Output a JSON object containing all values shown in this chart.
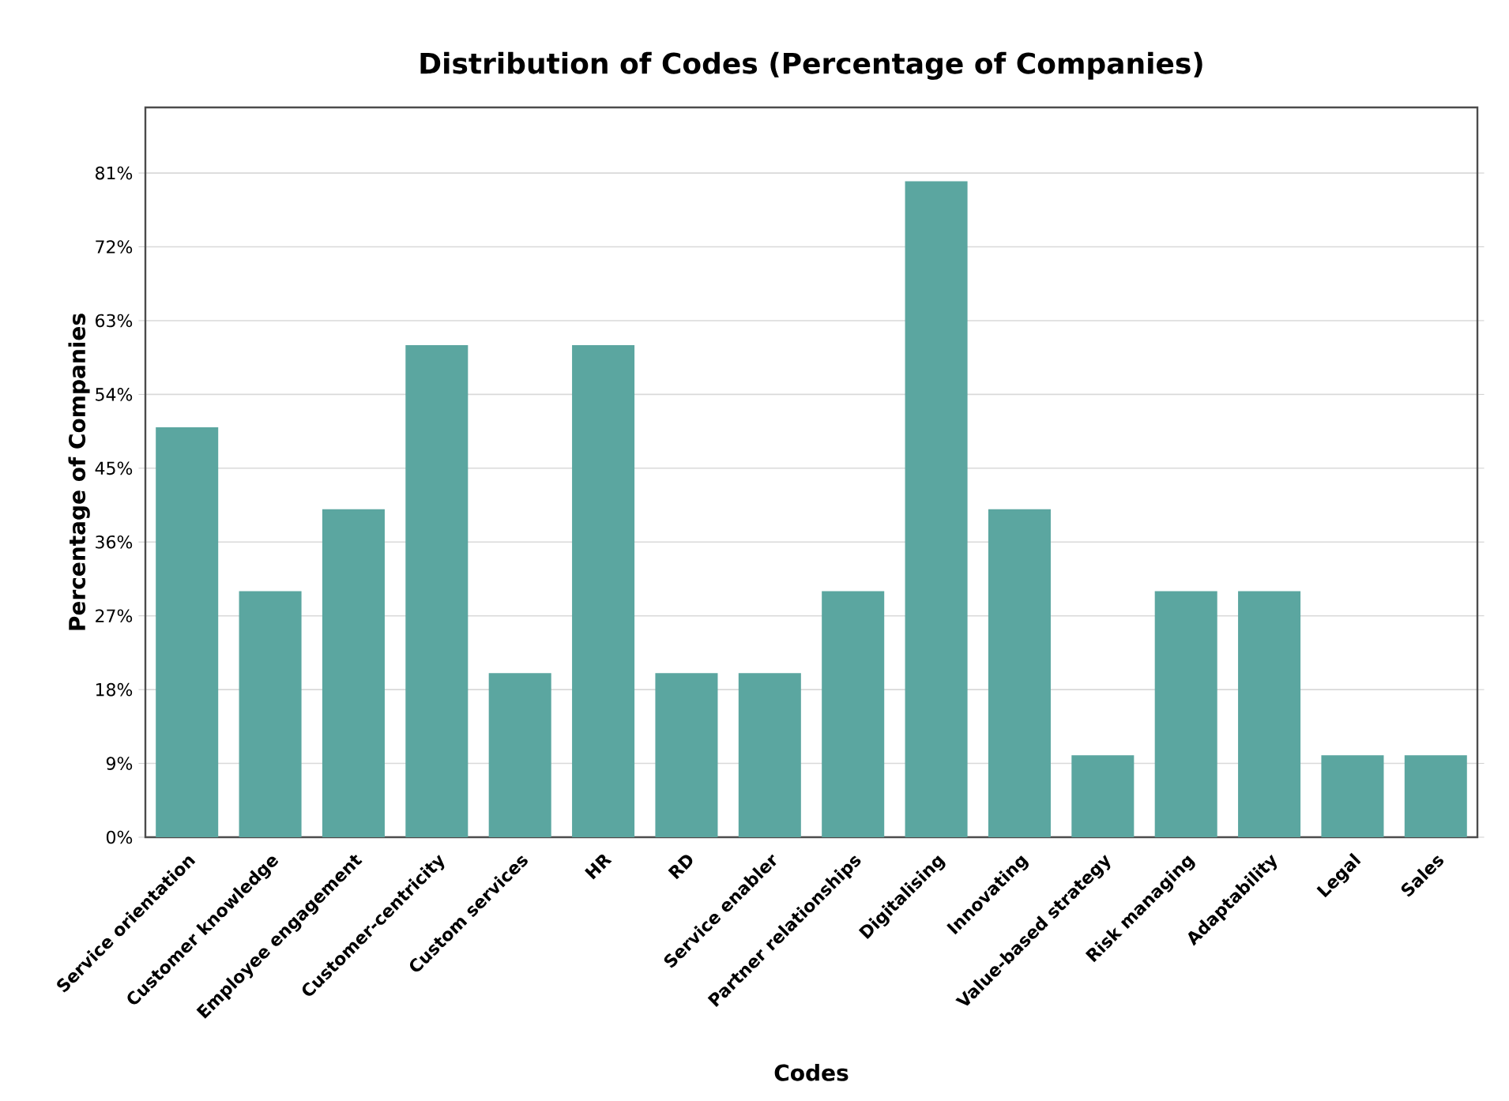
{
  "chart_data": {
    "type": "bar",
    "title": "Distribution of Codes (Percentage of Companies)",
    "xlabel": "Codes",
    "ylabel": "Percentage of Companies",
    "categories": [
      "Service orientation",
      "Customer knowledge",
      "Employee engagement",
      "Customer-centricity",
      "Custom services",
      "HR",
      "RD",
      "Service enabler",
      "Partner relationships",
      "Digitalising",
      "Innovating",
      "Value-based strategy",
      "Risk managing",
      "Adaptability",
      "Legal",
      "Sales"
    ],
    "values": [
      50,
      30,
      40,
      60,
      20,
      60,
      20,
      20,
      30,
      80,
      40,
      10,
      30,
      30,
      10,
      10
    ],
    "color": "#5ba6a0",
    "ylim": [
      0,
      89
    ],
    "yticks": [
      {
        "value": 0,
        "label": "0%"
      },
      {
        "value": 9,
        "label": "9%"
      },
      {
        "value": 18,
        "label": "18%"
      },
      {
        "value": 27,
        "label": "27%"
      },
      {
        "value": 36,
        "label": "36%"
      },
      {
        "value": 45,
        "label": "45%"
      },
      {
        "value": 54,
        "label": "54%"
      },
      {
        "value": 63,
        "label": "63%"
      },
      {
        "value": 72,
        "label": "72%"
      },
      {
        "value": 81,
        "label": "81%"
      }
    ],
    "grid": "y"
  }
}
